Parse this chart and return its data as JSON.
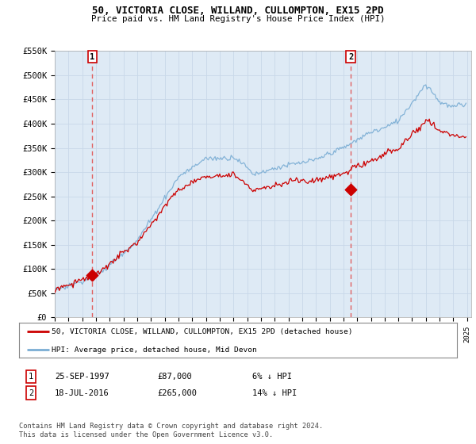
{
  "title": "50, VICTORIA CLOSE, WILLAND, CULLOMPTON, EX15 2PD",
  "subtitle": "Price paid vs. HM Land Registry's House Price Index (HPI)",
  "legend_line1": "50, VICTORIA CLOSE, WILLAND, CULLOMPTON, EX15 2PD (detached house)",
  "legend_line2": "HPI: Average price, detached house, Mid Devon",
  "table": [
    {
      "num": "1",
      "date": "25-SEP-1997",
      "price": "£87,000",
      "hpi": "6% ↓ HPI"
    },
    {
      "num": "2",
      "date": "18-JUL-2016",
      "price": "£265,000",
      "hpi": "14% ↓ HPI"
    }
  ],
  "footnote": "Contains HM Land Registry data © Crown copyright and database right 2024.\nThis data is licensed under the Open Government Licence v3.0.",
  "sale1_year": 1997.73,
  "sale1_price": 87000,
  "sale2_year": 2016.54,
  "sale2_price": 265000,
  "ylim": [
    0,
    550000
  ],
  "xlim_start": 1995.0,
  "xlim_end": 2025.3,
  "hpi_color": "#7aadd4",
  "price_color": "#cc0000",
  "sale_dot_color": "#cc0000",
  "vline_color": "#e06060",
  "grid_color": "#c8d8e8",
  "bg_color": "#ffffff",
  "plot_bg_color": "#deeaf5",
  "legend_border_color": "#888888"
}
